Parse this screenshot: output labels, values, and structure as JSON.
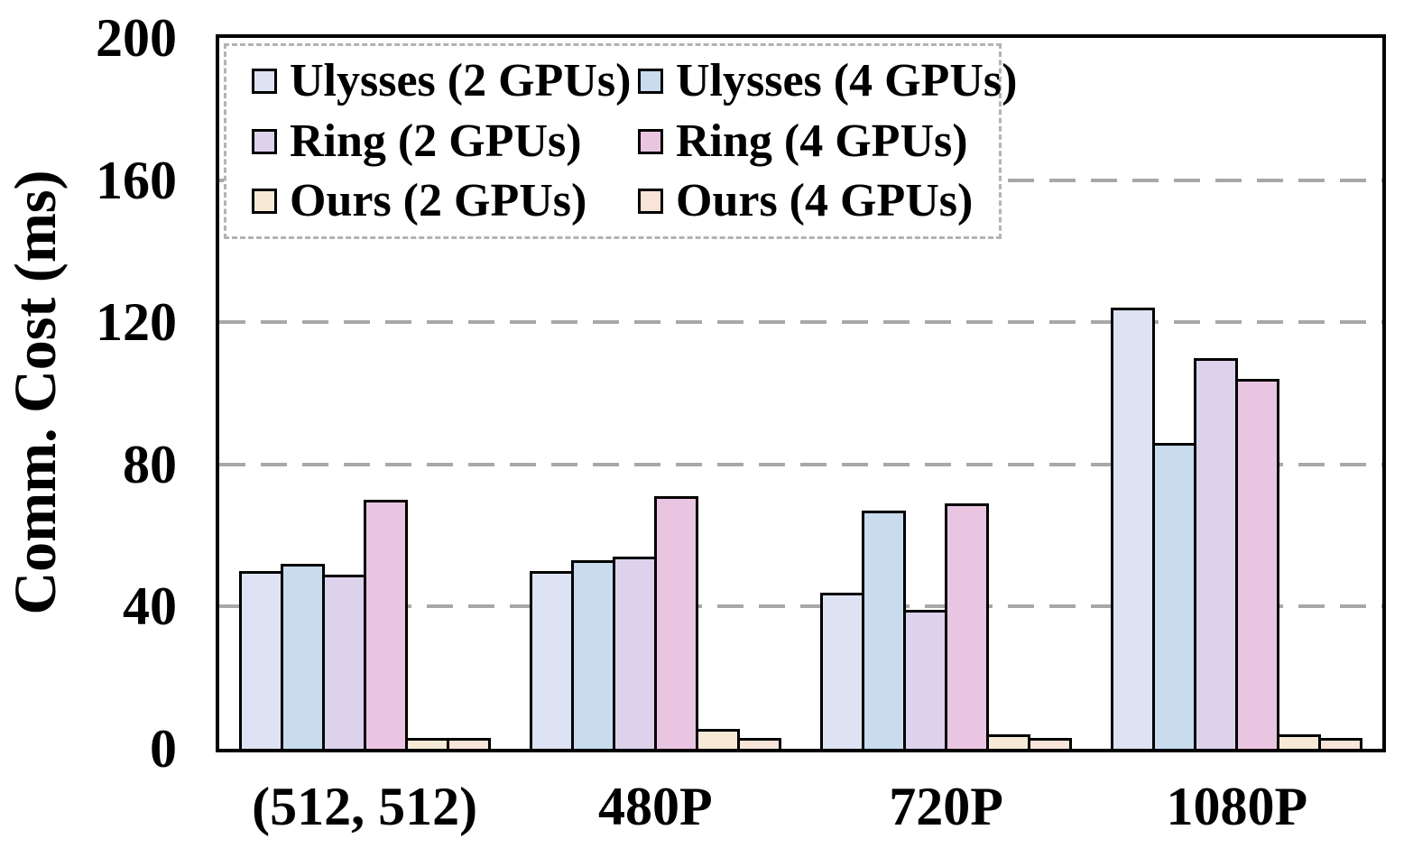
{
  "chart_data": {
    "type": "bar",
    "title": "",
    "xlabel": "",
    "ylabel": "Comm. Cost (ms)",
    "ylim": [
      0,
      200
    ],
    "yticks": [
      0,
      40,
      80,
      120,
      160,
      200
    ],
    "grid": "horizontal dashed gridlines at 40, 80, 120, 160",
    "legend_position": "top-left inside plot, 2 columns, dashed border",
    "categories": [
      "(512, 512)",
      "480P",
      "720P",
      "1080P"
    ],
    "series": [
      {
        "name": "Ulysses (2 GPUs)",
        "color": "#dde3f3",
        "values": [
          50,
          50,
          44,
          124
        ]
      },
      {
        "name": "Ulysses (4 GPUs)",
        "color": "#c8dcee",
        "values": [
          52,
          53,
          67,
          86
        ]
      },
      {
        "name": "Ring (2 GPUs)",
        "color": "#ddd2ec",
        "values": [
          49,
          54,
          39,
          110
        ]
      },
      {
        "name": "Ring (4 GPUs)",
        "color": "#eac5e1",
        "values": [
          70,
          71,
          69,
          104
        ]
      },
      {
        "name": "Ours (2 GPUs)",
        "color": "#f6ead6",
        "values": [
          3,
          5.5,
          4,
          4
        ]
      },
      {
        "name": "Ours (4 GPUs)",
        "color": "#f9e4da",
        "values": [
          3,
          3,
          3,
          3
        ]
      }
    ],
    "style": {
      "bar_border_color": "#000000",
      "gridline_color": "#a8a8a8",
      "frame_color": "#000000",
      "legend_border_color": "#b3b3b3",
      "background": "#ffffff"
    }
  }
}
